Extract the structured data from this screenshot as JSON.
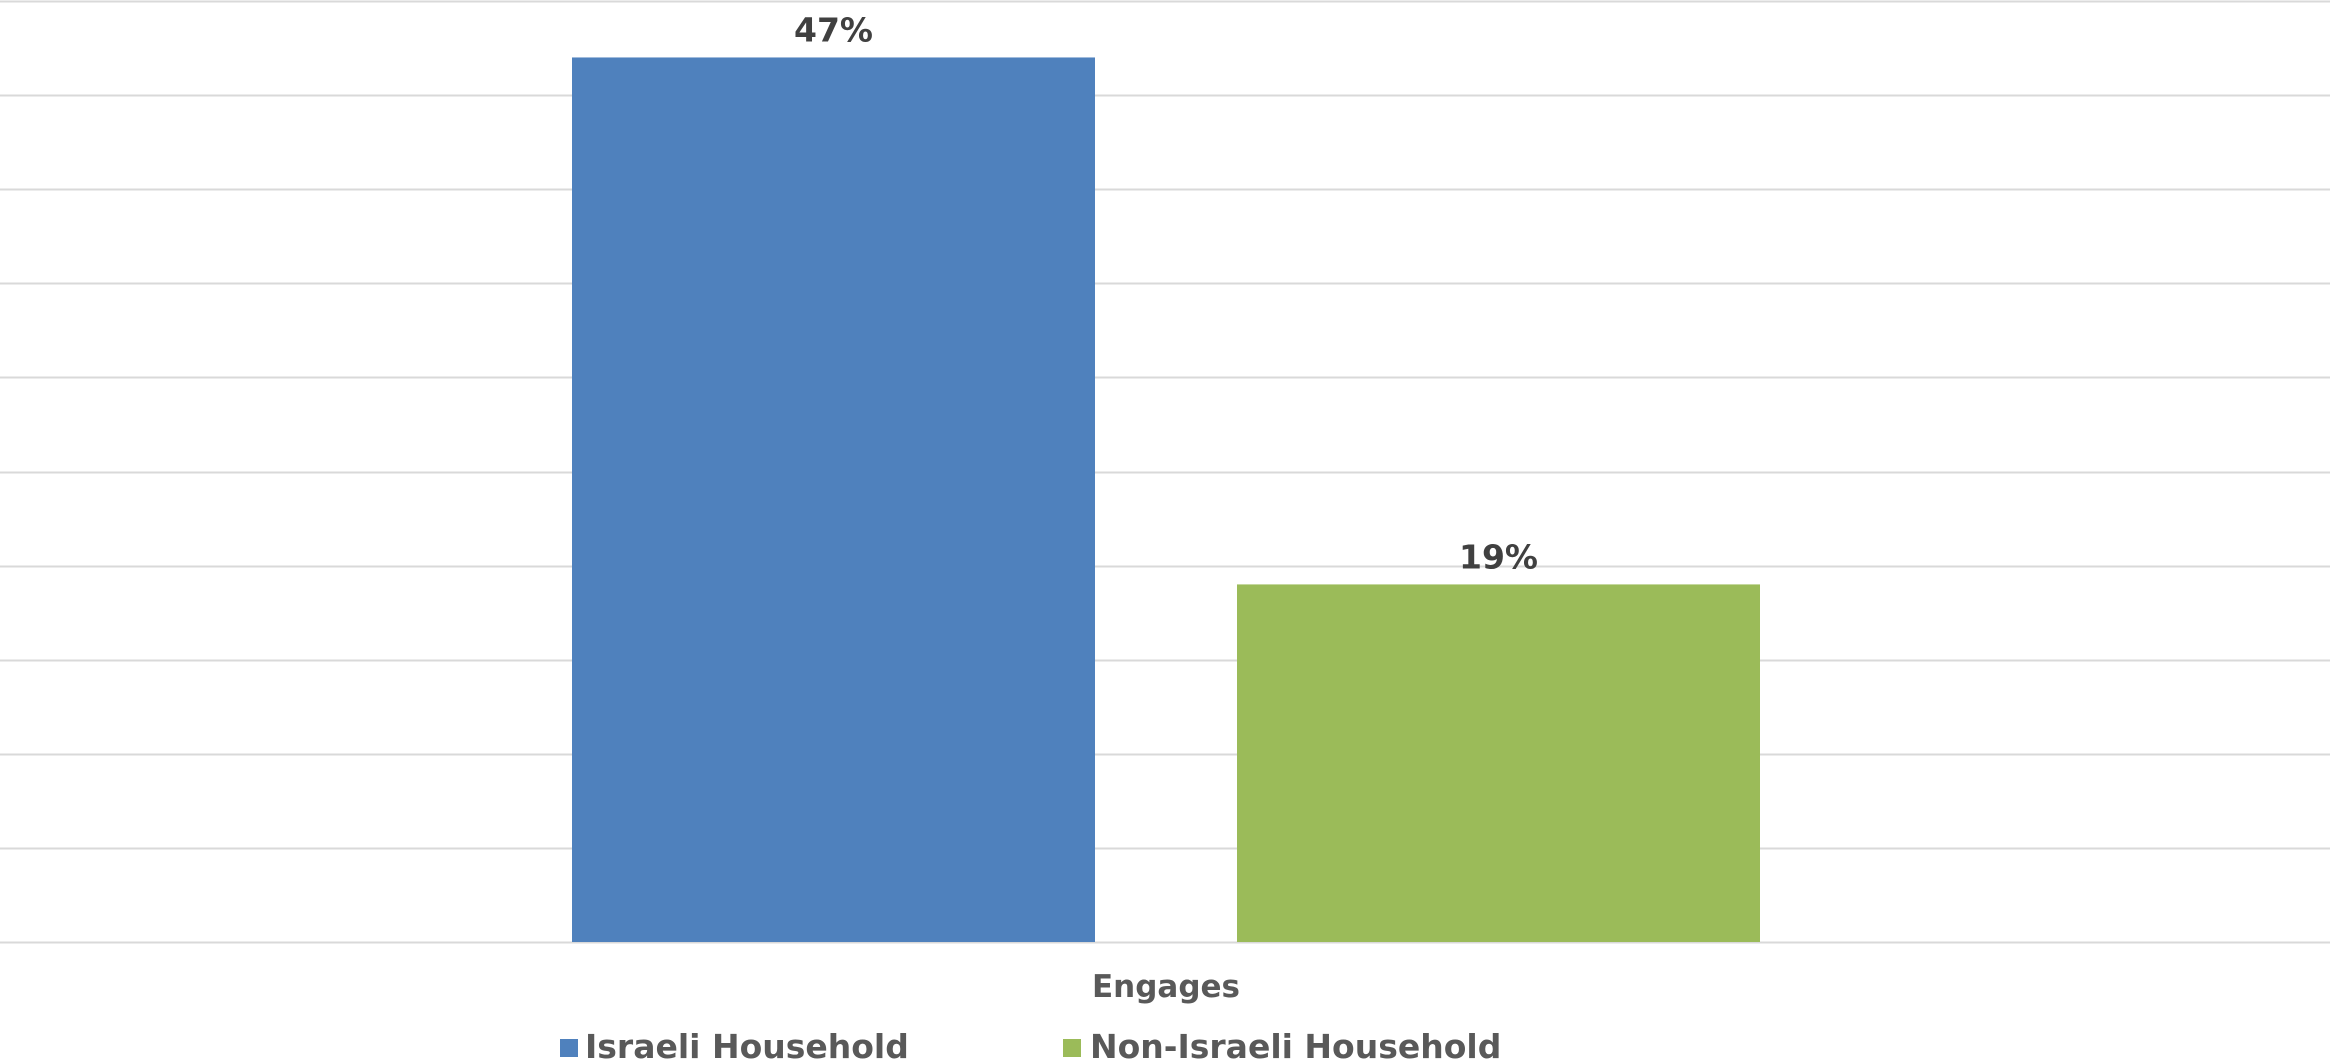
{
  "chart_data": {
    "type": "bar",
    "categories": [
      "Engages"
    ],
    "series": [
      {
        "name": "Israeli Household",
        "values": [
          47
        ],
        "label": "47%",
        "color": "#4F81BD"
      },
      {
        "name": "Non-Israeli Household",
        "values": [
          19
        ],
        "label": "19%",
        "color": "#9BBB59"
      }
    ],
    "ylim": [
      0,
      50
    ],
    "y_unit": "%",
    "grid": true,
    "gridline_color": "#D9D9D9",
    "legend_position": "bottom"
  }
}
